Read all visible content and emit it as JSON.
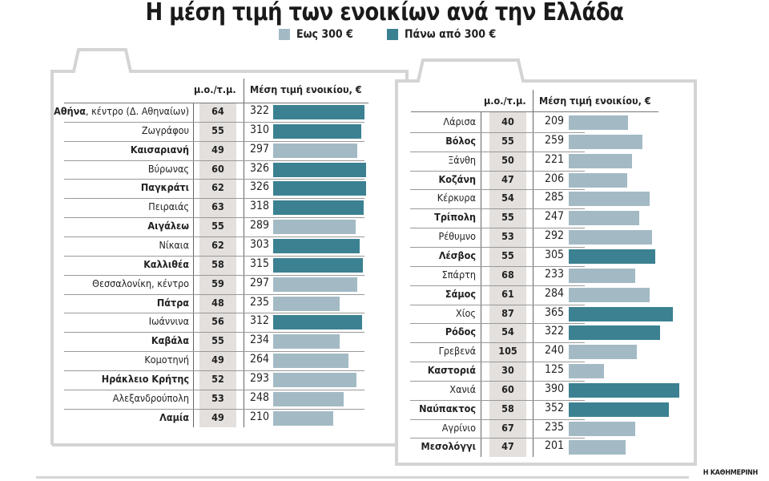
{
  "chart_data": {
    "type": "bar",
    "title": "Η μέση τιμή των ενοικίων ανά την Ελλάδα",
    "orientation": "horizontal",
    "legend": {
      "placement": "top",
      "items": [
        {
          "label": "Εως 300 €",
          "color": "#a3bac5"
        },
        {
          "label": "Πάνω από 300 €",
          "color": "#3b8191"
        }
      ]
    },
    "threshold": 300,
    "columns": {
      "avg": "μ.ο./τ.μ.",
      "rent": "Μέση τιμή ενοικίου, €"
    },
    "tables": [
      {
        "rows": [
          {
            "name": "Αθήνα",
            "suffix": ", κέντρο (Δ. Αθηναίων)",
            "bold": true,
            "avg": 64,
            "rent": 322
          },
          {
            "name": "Ζωγράφου",
            "bold": false,
            "avg": 55,
            "rent": 310
          },
          {
            "name": "Καισαριανή",
            "bold": true,
            "avg": 49,
            "rent": 297
          },
          {
            "name": "Βύρωνας",
            "bold": false,
            "avg": 60,
            "rent": 326
          },
          {
            "name": "Παγκράτι",
            "bold": true,
            "avg": 62,
            "rent": 326
          },
          {
            "name": "Πειραιάς",
            "bold": false,
            "avg": 63,
            "rent": 318
          },
          {
            "name": "Αιγάλεω",
            "bold": true,
            "avg": 55,
            "rent": 289
          },
          {
            "name": "Νίκαια",
            "bold": false,
            "avg": 62,
            "rent": 303
          },
          {
            "name": "Καλλιθέα",
            "bold": true,
            "avg": 58,
            "rent": 315
          },
          {
            "name": "Θεσσαλονίκη, κέντρο",
            "bold": false,
            "avg": 59,
            "rent": 297
          },
          {
            "name": "Πάτρα",
            "bold": true,
            "avg": 48,
            "rent": 235
          },
          {
            "name": "Ιωάννινα",
            "bold": false,
            "avg": 56,
            "rent": 312
          },
          {
            "name": "Καβάλα",
            "bold": true,
            "avg": 55,
            "rent": 234
          },
          {
            "name": "Κομοτηνή",
            "bold": false,
            "avg": 49,
            "rent": 264
          },
          {
            "name": "Ηράκλειο Κρήτης",
            "bold": true,
            "avg": 52,
            "rent": 293
          },
          {
            "name": "Αλεξανδρούπολη",
            "bold": false,
            "avg": 53,
            "rent": 248
          },
          {
            "name": "Λαμία",
            "bold": true,
            "avg": 49,
            "rent": 210
          }
        ]
      },
      {
        "rows": [
          {
            "name": "Λάρισα",
            "bold": false,
            "avg": 40,
            "rent": 209
          },
          {
            "name": "Βόλος",
            "bold": true,
            "avg": 55,
            "rent": 259
          },
          {
            "name": "Ξάνθη",
            "bold": false,
            "avg": 50,
            "rent": 221
          },
          {
            "name": "Κοζάνη",
            "bold": true,
            "avg": 47,
            "rent": 206
          },
          {
            "name": "Κέρκυρα",
            "bold": false,
            "avg": 54,
            "rent": 285
          },
          {
            "name": "Τρίπολη",
            "bold": true,
            "avg": 55,
            "rent": 247
          },
          {
            "name": "Ρέθυμνο",
            "bold": false,
            "avg": 53,
            "rent": 292
          },
          {
            "name": "Λέσβος",
            "bold": true,
            "avg": 55,
            "rent": 305
          },
          {
            "name": "Σπάρτη",
            "bold": false,
            "avg": 68,
            "rent": 233
          },
          {
            "name": "Σάμος",
            "bold": true,
            "avg": 61,
            "rent": 284
          },
          {
            "name": "Χίος",
            "bold": false,
            "avg": 87,
            "rent": 365
          },
          {
            "name": "Ρόδος",
            "bold": true,
            "avg": 54,
            "rent": 322
          },
          {
            "name": "Γρεβενά",
            "bold": false,
            "avg": 105,
            "rent": 240
          },
          {
            "name": "Καστοριά",
            "bold": true,
            "avg": 30,
            "rent": 125
          },
          {
            "name": "Χανιά",
            "bold": false,
            "avg": 60,
            "rent": 390
          },
          {
            "name": "Ναύπακτος",
            "bold": true,
            "avg": 58,
            "rent": 352
          },
          {
            "name": "Αγρίνιο",
            "bold": false,
            "avg": 67,
            "rent": 235
          },
          {
            "name": "Μεσολόγγι",
            "bold": true,
            "avg": 47,
            "rent": 201
          }
        ]
      }
    ]
  },
  "credit": "Η ΚΑΘΗΜΕΡΙΝΗ"
}
